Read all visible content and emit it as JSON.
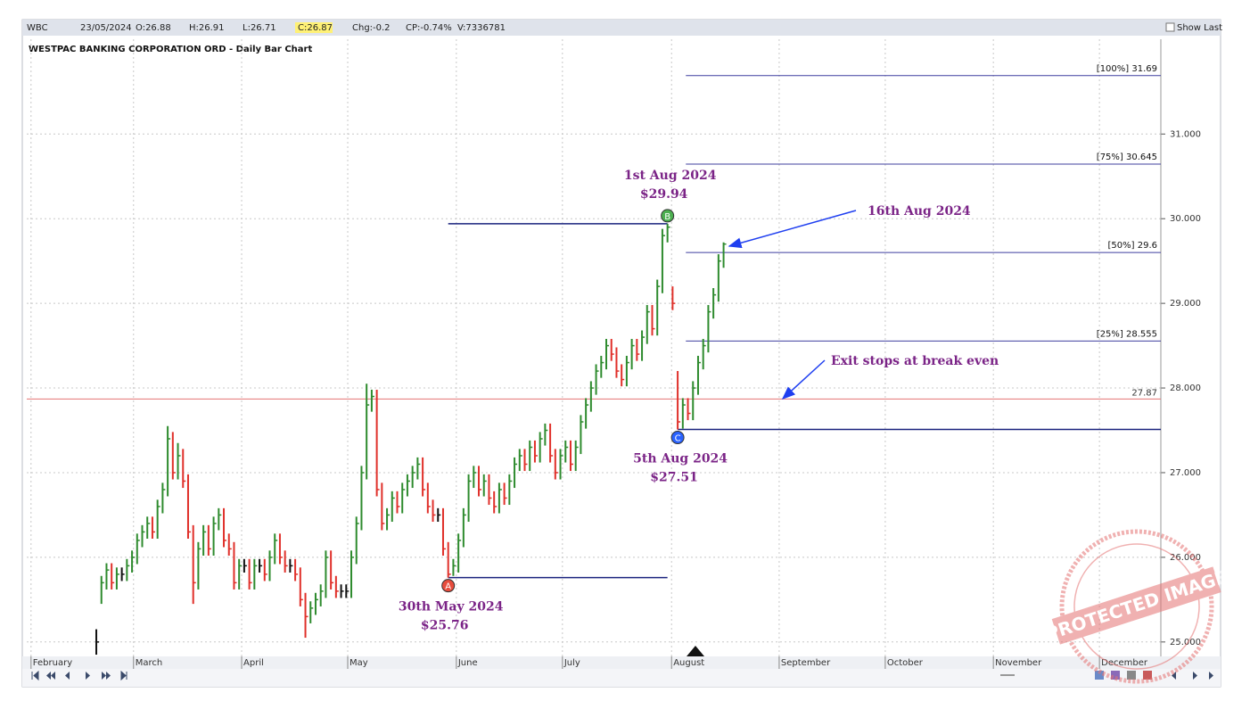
{
  "chart_data": {
    "type": "ohlc",
    "header": {
      "symbol": "WBC",
      "date": "23/05/2024",
      "open": "O:26.88",
      "high": "H:26.91",
      "low": "L:26.71",
      "close": "C:26.87",
      "change": "Chg:-0.2",
      "change_pct": "CP:-0.74%",
      "volume": "V:7336781",
      "show_last": "Show Last"
    },
    "title": "WESTPAC BANKING CORPORATION ORD - Daily Bar Chart",
    "up_color": "#2e8b2e",
    "down_color": "#e0302a",
    "flat_color": "#111111",
    "x": [
      0,
      1,
      2,
      3,
      4,
      5,
      6,
      7,
      8,
      9,
      10,
      11,
      12,
      13,
      14,
      15,
      16,
      17,
      18,
      19,
      20,
      21,
      22,
      23,
      24,
      25,
      26,
      27,
      28,
      29,
      30,
      31,
      32,
      33,
      34,
      35,
      36,
      37,
      38,
      39,
      40,
      41,
      42,
      43,
      44,
      45,
      46,
      47,
      48,
      49,
      50,
      51,
      52,
      53,
      54,
      55,
      56,
      57,
      58,
      59,
      60,
      61,
      62,
      63,
      64,
      65,
      66,
      67,
      68,
      69,
      70,
      71,
      72,
      73,
      74,
      75,
      76,
      77,
      78,
      79,
      80,
      81,
      82,
      83,
      84,
      85,
      86,
      87,
      88,
      89,
      90,
      91,
      92,
      93,
      94,
      95,
      96,
      97,
      98,
      99,
      100,
      101,
      102,
      103,
      104,
      105,
      106,
      107,
      108,
      109,
      110,
      111,
      112,
      113,
      114,
      115,
      116,
      117,
      118,
      119,
      120,
      121,
      122,
      123
    ],
    "close": [
      25.0,
      25.7,
      25.85,
      25.7,
      25.8,
      25.8,
      25.9,
      26.0,
      26.2,
      26.3,
      26.4,
      26.3,
      26.6,
      26.8,
      27.4,
      27.0,
      27.2,
      26.9,
      26.3,
      25.7,
      26.1,
      26.3,
      26.1,
      26.4,
      26.5,
      26.2,
      26.1,
      25.7,
      25.9,
      25.9,
      25.7,
      25.9,
      25.9,
      25.8,
      26.0,
      26.2,
      26.0,
      25.9,
      25.9,
      25.8,
      25.5,
      25.3,
      25.4,
      25.5,
      25.6,
      26.0,
      25.7,
      25.6,
      25.6,
      25.6,
      26.0,
      26.4,
      27.0,
      27.8,
      27.9,
      26.8,
      26.4,
      26.5,
      26.7,
      26.6,
      26.8,
      26.9,
      27.0,
      27.1,
      26.8,
      26.6,
      26.5,
      26.5,
      26.1,
      25.8,
      25.9,
      26.2,
      26.5,
      26.9,
      27.0,
      26.8,
      26.9,
      26.7,
      26.6,
      26.8,
      26.7,
      26.9,
      27.1,
      27.2,
      27.1,
      27.3,
      27.2,
      27.4,
      27.5,
      27.2,
      27.0,
      27.2,
      27.3,
      27.1,
      27.3,
      27.6,
      27.8,
      28.0,
      28.2,
      28.3,
      28.5,
      28.4,
      28.2,
      28.1,
      28.3,
      28.5,
      28.4,
      28.6,
      28.9,
      28.7,
      29.2,
      29.8,
      29.9,
      29.0,
      27.6,
      27.8,
      27.7,
      28.0,
      28.3,
      28.5,
      28.9,
      29.1,
      29.5,
      29.7
    ],
    "high": [
      25.15,
      25.78,
      25.93,
      25.93,
      25.88,
      25.88,
      25.98,
      26.08,
      26.28,
      26.38,
      26.48,
      26.48,
      26.68,
      26.88,
      27.55,
      27.48,
      27.35,
      27.28,
      26.98,
      26.38,
      26.18,
      26.38,
      26.38,
      26.48,
      26.58,
      26.58,
      26.28,
      26.18,
      25.98,
      25.98,
      25.98,
      25.98,
      25.98,
      25.98,
      26.08,
      26.28,
      26.28,
      26.08,
      25.98,
      25.98,
      25.88,
      25.58,
      25.48,
      25.58,
      25.68,
      26.08,
      26.08,
      25.78,
      25.68,
      25.68,
      26.08,
      26.48,
      27.08,
      28.05,
      27.98,
      27.98,
      26.88,
      26.58,
      26.78,
      26.78,
      26.88,
      26.98,
      27.08,
      27.18,
      27.18,
      26.88,
      26.68,
      26.58,
      26.58,
      26.18,
      25.98,
      26.28,
      26.58,
      26.98,
      27.08,
      27.08,
      26.98,
      26.98,
      26.78,
      26.88,
      26.88,
      26.98,
      27.18,
      27.28,
      27.28,
      27.38,
      27.38,
      27.48,
      27.58,
      27.58,
      27.28,
      27.28,
      27.38,
      27.38,
      27.38,
      27.68,
      27.88,
      28.08,
      28.28,
      28.38,
      28.58,
      28.58,
      28.48,
      28.28,
      28.38,
      28.58,
      28.58,
      28.68,
      28.98,
      28.98,
      29.28,
      29.88,
      29.94,
      29.2,
      28.2,
      27.88,
      27.88,
      28.08,
      28.38,
      28.58,
      28.98,
      29.18,
      29.58,
      29.72
    ],
    "low": [
      24.85,
      25.45,
      25.62,
      25.62,
      25.62,
      25.72,
      25.72,
      25.82,
      25.92,
      26.12,
      26.22,
      26.22,
      26.22,
      26.52,
      26.72,
      26.92,
      26.92,
      26.82,
      26.22,
      25.45,
      25.62,
      26.02,
      26.02,
      26.02,
      26.32,
      26.12,
      26.02,
      25.62,
      25.62,
      25.82,
      25.62,
      25.62,
      25.82,
      25.72,
      25.72,
      25.92,
      25.92,
      25.82,
      25.82,
      25.72,
      25.42,
      25.05,
      25.22,
      25.32,
      25.42,
      25.52,
      25.62,
      25.52,
      25.52,
      25.52,
      25.52,
      25.92,
      26.32,
      26.92,
      27.72,
      26.72,
      26.32,
      26.32,
      26.42,
      26.52,
      26.52,
      26.72,
      26.82,
      26.92,
      26.72,
      26.52,
      26.42,
      26.42,
      26.02,
      25.76,
      25.78,
      25.82,
      26.12,
      26.42,
      26.82,
      26.72,
      26.72,
      26.62,
      26.52,
      26.52,
      26.62,
      26.62,
      26.82,
      27.02,
      27.02,
      27.02,
      27.12,
      27.12,
      27.32,
      27.12,
      26.92,
      26.92,
      27.12,
      27.02,
      27.02,
      27.22,
      27.52,
      27.72,
      27.92,
      28.12,
      28.22,
      28.32,
      28.12,
      28.02,
      28.02,
      28.22,
      28.32,
      28.32,
      28.52,
      28.62,
      28.62,
      29.12,
      29.72,
      28.92,
      27.51,
      27.52,
      27.62,
      27.62,
      27.92,
      28.22,
      28.42,
      28.82,
      29.02,
      29.42
    ],
    "xlim": [
      -13.64,
      208.74
    ],
    "xticks": [
      {
        "value": -12.8,
        "label": "February"
      },
      {
        "value": 7.3,
        "label": "March"
      },
      {
        "value": 28.5,
        "label": "April"
      },
      {
        "value": 49.3,
        "label": "May"
      },
      {
        "value": 70.6,
        "label": "June"
      },
      {
        "value": 91.4,
        "label": "July"
      },
      {
        "value": 112.8,
        "label": "August"
      },
      {
        "value": 133.9,
        "label": "September"
      },
      {
        "value": 154.7,
        "label": "October"
      },
      {
        "value": 175.9,
        "label": "November"
      },
      {
        "value": 196.7,
        "label": "December"
      }
    ],
    "ylim": [
      24.84,
      31.93
    ],
    "yticks": [
      {
        "value": 25,
        "label": "25.000"
      },
      {
        "value": 26,
        "label": "26.000"
      },
      {
        "value": 27,
        "label": "27.000"
      },
      {
        "value": 28,
        "label": "28.000"
      },
      {
        "value": 29,
        "label": "29.000"
      },
      {
        "value": 30,
        "label": "30.000"
      },
      {
        "value": 31,
        "label": "31.000"
      }
    ],
    "grid": true,
    "price_line": {
      "value": 27.87,
      "color": "#e57373"
    },
    "levels": [
      {
        "label": "[100%] 31.69",
        "value": 31.69
      },
      {
        "label": "[75%] 30.645",
        "value": 30.645
      },
      {
        "label": "[50%] 29.6",
        "value": 29.6
      },
      {
        "label": "[25%] 28.555",
        "value": 28.555
      }
    ],
    "levels_x_start": 115.6,
    "lines": [
      {
        "value": 29.94,
        "x_start": 69,
        "x_end": 112
      },
      {
        "value": 25.76,
        "x_start": 69,
        "x_end": 112
      },
      {
        "value": 27.51,
        "x_start": 114
      }
    ],
    "line_color": "#1a237e",
    "level_color": "#3f3f9f",
    "points": [
      {
        "marker": "A",
        "label": "30th May 2024",
        "price_label": "$25.76",
        "x": 69,
        "value": 25.76,
        "color": "#e74c3c"
      },
      {
        "marker": "B",
        "label": "1st Aug 2024",
        "price_label": "$29.94",
        "x": 112,
        "value": 29.94,
        "color": "#4caf50"
      },
      {
        "marker": "C",
        "label": "5th Aug 2024",
        "price_label": "$27.51",
        "x": 114,
        "value": 27.51,
        "color": "#2962ff"
      }
    ],
    "annotations": [
      "16th Aug 2024",
      "Exit stops at break even"
    ],
    "watermark": "PROTECTED IMAGE"
  }
}
